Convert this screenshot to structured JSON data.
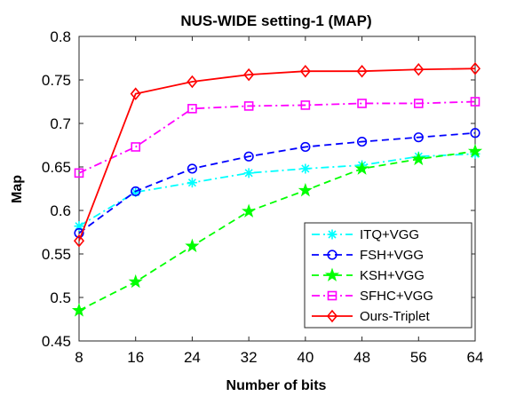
{
  "chart_data": {
    "type": "line",
    "title": "NUS-WIDE setting-1 (MAP)",
    "xlabel": "Number of bits",
    "ylabel": "Map",
    "x": [
      8,
      16,
      24,
      32,
      40,
      48,
      56,
      64
    ],
    "xlim": [
      8,
      64
    ],
    "ylim": [
      0.45,
      0.8
    ],
    "xticks": [
      "8",
      "16",
      "24",
      "32",
      "40",
      "48",
      "56",
      "64"
    ],
    "yticks": [
      "0.45",
      "0.5",
      "0.55",
      "0.6",
      "0.65",
      "0.7",
      "0.75",
      "0.8"
    ],
    "grid": false,
    "legend_position": "bottom-right",
    "series": [
      {
        "name": "ITQ+VGG",
        "color": "#00ffff",
        "marker": "asterisk",
        "dash": "dashdot",
        "values": [
          0.582,
          0.621,
          0.632,
          0.643,
          0.648,
          0.652,
          0.662,
          0.665
        ]
      },
      {
        "name": "FSH+VGG",
        "color": "#0000ff",
        "marker": "circle",
        "dash": "dashed",
        "values": [
          0.574,
          0.622,
          0.648,
          0.662,
          0.673,
          0.679,
          0.684,
          0.689
        ]
      },
      {
        "name": "KSH+VGG",
        "color": "#00ff00",
        "marker": "star",
        "dash": "dashed",
        "values": [
          0.485,
          0.518,
          0.559,
          0.599,
          0.623,
          0.648,
          0.659,
          0.668
        ]
      },
      {
        "name": "SFHC+VGG",
        "color": "#ff00ff",
        "marker": "square",
        "dash": "dashdot",
        "values": [
          0.643,
          0.673,
          0.717,
          0.72,
          0.721,
          0.723,
          0.723,
          0.725
        ]
      },
      {
        "name": "Ours-Triplet",
        "color": "#ff0000",
        "marker": "diamond",
        "dash": "solid",
        "values": [
          0.565,
          0.734,
          0.748,
          0.756,
          0.76,
          0.76,
          0.762,
          0.763
        ]
      }
    ]
  }
}
